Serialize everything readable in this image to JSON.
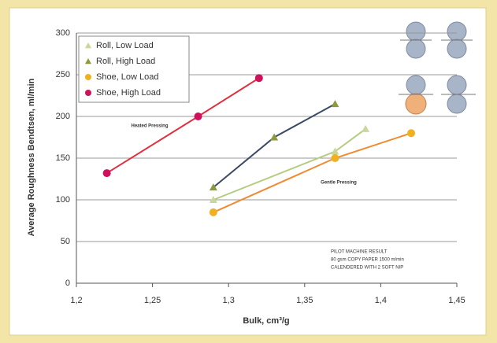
{
  "chart_data": {
    "type": "scatter",
    "y_label": "Average Roughness Bendtsen, ml/min",
    "x_label": "Bulk, cm³/g",
    "xlim": [
      1.2,
      1.45
    ],
    "xticks": [
      {
        "value": 1.2,
        "label": "1,2"
      },
      {
        "value": 1.25,
        "label": "1,25"
      },
      {
        "value": 1.3,
        "label": "1,3"
      },
      {
        "value": 1.35,
        "label": "1,35"
      },
      {
        "value": 1.4,
        "label": "1,4"
      },
      {
        "value": 1.45,
        "label": "1,45"
      }
    ],
    "ylim": [
      0,
      300
    ],
    "yticks": [
      0,
      50,
      100,
      150,
      200,
      250,
      300
    ],
    "grid": true,
    "legend": "top-left",
    "series": [
      {
        "name": "Roll, Low Load",
        "color": "#c8d89a",
        "line_color": "#b4cc80",
        "marker": "triangle",
        "x": [
          1.29,
          1.37,
          1.39
        ],
        "values": [
          100,
          158,
          185
        ]
      },
      {
        "name": "Roll, High Load",
        "color": "#8c9a3c",
        "line_color": "#3a4a66",
        "marker": "triangle",
        "x": [
          1.29,
          1.33,
          1.37
        ],
        "values": [
          115,
          175,
          215
        ]
      },
      {
        "name": "Shoe, Low Load",
        "color": "#f0b020",
        "line_color": "#f08a30",
        "marker": "circle",
        "x": [
          1.29,
          1.37,
          1.42
        ],
        "values": [
          85,
          150,
          180
        ]
      },
      {
        "name": "Shoe, High Load",
        "color": "#d0105a",
        "line_color": "#e03040",
        "marker": "circle",
        "x": [
          1.22,
          1.28,
          1.32
        ],
        "values": [
          132,
          200,
          246
        ]
      }
    ],
    "annotations": [
      "Heated Pressing",
      "Gentle Pressing"
    ],
    "note": [
      "PILOT MACHINE RESULT",
      "80 gsm COPY PAPER 1500 m/min",
      "CALENDERED WITH 2 SOFT NIP"
    ]
  }
}
